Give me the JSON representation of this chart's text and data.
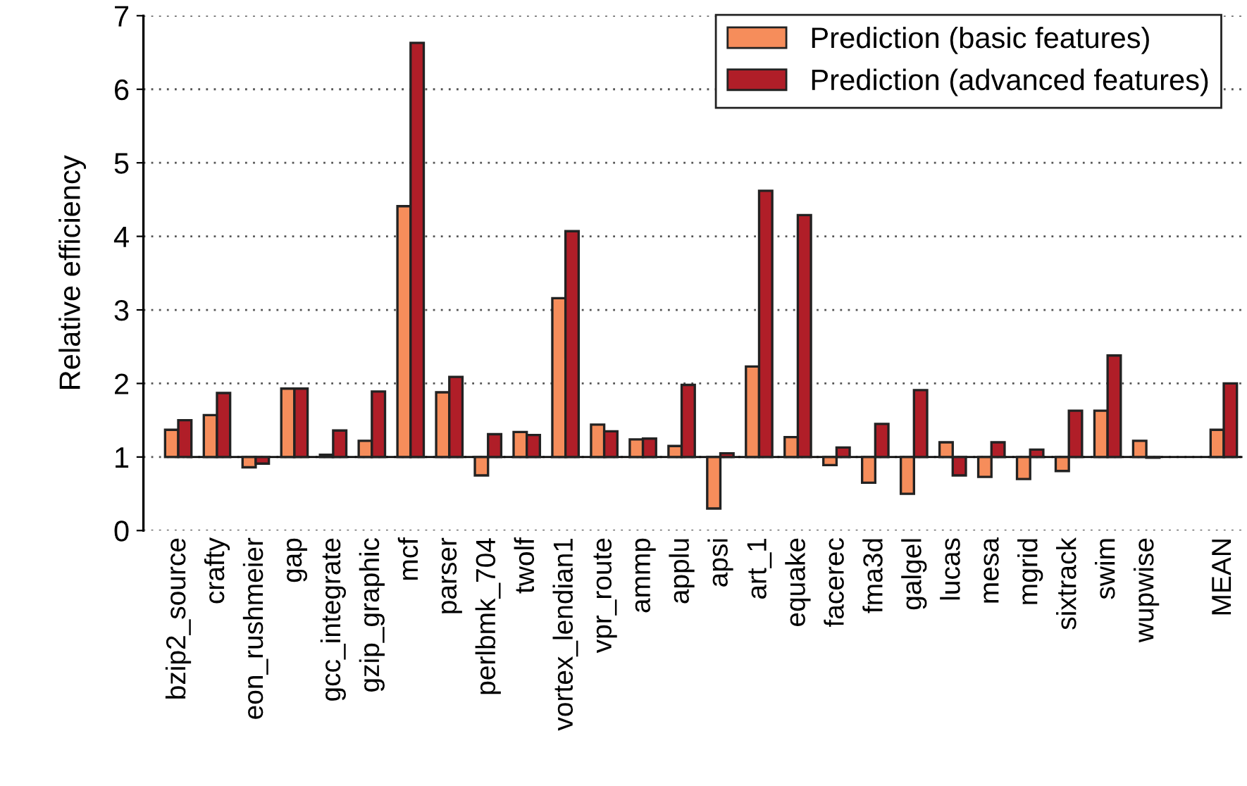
{
  "chart_data": {
    "type": "bar",
    "ylabel": "Relative efficiency",
    "categories": [
      "bzip2_source",
      "crafty",
      "eon_rushmeier",
      "gap",
      "gcc_integrate",
      "gzip_graphic",
      "mcf",
      "parser",
      "perlbmk_704",
      "twolf",
      "vortex_lendian1",
      "vpr_route",
      "ammp",
      "applu",
      "apsi",
      "art_1",
      "equake",
      "facerec",
      "fma3d",
      "galgel",
      "lucas",
      "mesa",
      "mgrid",
      "sixtrack",
      "swim",
      "wupwise",
      null,
      "MEAN"
    ],
    "series": [
      {
        "name": "Prediction (basic features)",
        "color": "#f68d5b",
        "base": [
          1,
          1,
          1,
          1,
          1,
          1,
          1,
          1,
          1,
          1,
          1,
          1,
          1,
          1,
          1,
          1,
          1,
          1,
          1,
          1,
          1,
          1,
          1,
          1,
          1,
          1,
          null,
          1
        ],
        "values": [
          0.37,
          0.57,
          -0.14,
          0.93,
          0.03,
          0.22,
          3.41,
          0.88,
          -0.25,
          0.34,
          2.16,
          0.44,
          0.24,
          0.15,
          -0.7,
          1.23,
          0.27,
          -0.11,
          -0.35,
          -0.5,
          0.2,
          -0.27,
          -0.3,
          -0.19,
          0.63,
          0.22,
          null,
          0.37
        ]
      },
      {
        "name": "Prediction (advanced features)",
        "color": "#b01e28",
        "base": [
          1,
          1,
          1,
          1,
          1,
          1,
          1,
          1,
          1,
          1,
          1,
          1,
          1,
          1,
          1,
          1,
          1,
          1,
          1,
          1,
          1,
          1,
          1,
          1,
          1,
          1,
          null,
          1
        ],
        "values": [
          0.5,
          0.87,
          -0.09,
          0.93,
          0.36,
          0.89,
          5.63,
          1.09,
          0.31,
          0.3,
          3.07,
          0.35,
          0.25,
          0.98,
          0.05,
          3.62,
          3.29,
          0.13,
          0.45,
          0.91,
          -0.25,
          0.2,
          0.1,
          0.63,
          1.38,
          -0.01,
          null,
          1.0
        ]
      }
    ],
    "ylim": [
      0,
      7
    ],
    "yticks": [
      0,
      1,
      2,
      3,
      4,
      5,
      6,
      7
    ],
    "grid": "y",
    "legend": "top right",
    "ref_lines": [
      {
        "axis": "y",
        "value": 1,
        "color": "#000000",
        "line_style": "solid"
      }
    ]
  }
}
